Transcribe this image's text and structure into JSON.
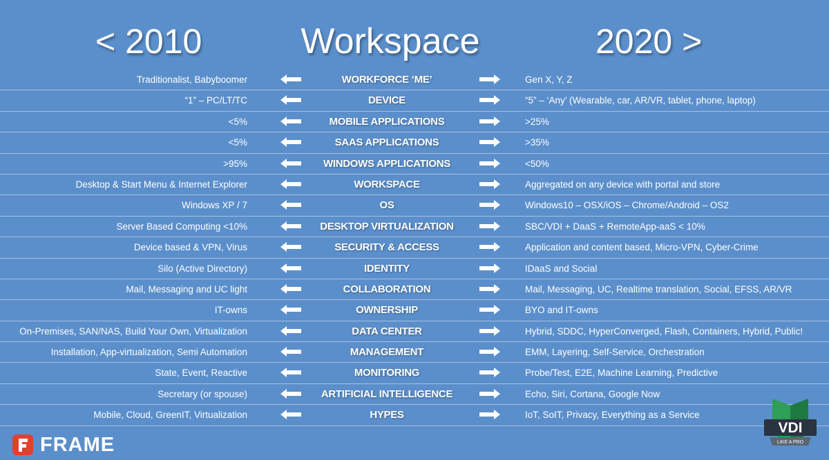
{
  "header": {
    "left_title": "< 2010",
    "center_title": "Workspace",
    "right_title": "2020 >"
  },
  "rows": [
    {
      "left": "Traditionalist, Babyboomer",
      "topic": "WORKFORCE ‘ME’",
      "right": "Gen X, Y, Z"
    },
    {
      "left": "“1” –  PC/LT/TC",
      "topic": "DEVICE",
      "right": "“5” – ‘Any’ (Wearable, car, AR/VR, tablet, phone, laptop)"
    },
    {
      "left": "<5%",
      "topic": "MOBILE APPLICATIONS",
      "right": ">25%"
    },
    {
      "left": "<5%",
      "topic": "SAAS APPLICATIONS",
      "right": ">35%"
    },
    {
      "left": ">95%",
      "topic": "WINDOWS APPLICATIONS",
      "right": "<50%"
    },
    {
      "left": "Desktop & Start Menu & Internet Explorer",
      "topic": "WORKSPACE",
      "right": "Aggregated on any device with portal and store"
    },
    {
      "left": "Windows XP / 7",
      "topic": "OS",
      "right": "Windows10 – OSX/iOS – Chrome/Android – OS2"
    },
    {
      "left": "Server Based Computing <10%",
      "topic": "DESKTOP VIRTUALIZATION",
      "right": "SBC/VDI + DaaS + RemoteApp-aaS  < 10%"
    },
    {
      "left": "Device based & VPN, Virus",
      "topic": "SECURITY & ACCESS",
      "right": "Application and content based, Micro-VPN, Cyber-Crime"
    },
    {
      "left": "Silo (Active Directory)",
      "topic": "IDENTITY",
      "right": "IDaaS and Social"
    },
    {
      "left": "Mail, Messaging and UC light",
      "topic": "COLLABORATION",
      "right": "Mail, Messaging, UC, Realtime translation, Social, EFSS, AR/VR"
    },
    {
      "left": "IT-owns",
      "topic": "OWNERSHIP",
      "right": "BYO and IT-owns"
    },
    {
      "left": "On-Premises, SAN/NAS, Build Your Own, Virtualization",
      "topic": "DATA CENTER",
      "right": "Hybrid, SDDC, HyperConverged, Flash, Containers, Hybrid, Public!"
    },
    {
      "left": "Installation, App-virtualization, Semi Automation",
      "topic": "MANAGEMENT",
      "right": "EMM, Layering, Self-Service, Orchestration"
    },
    {
      "left": "State, Event, Reactive",
      "topic": "MONITORING",
      "right": "Probe/Test, E2E, Machine Learning, Predictive"
    },
    {
      "left": "Secretary (or spouse)",
      "topic": "ARTIFICIAL INTELLIGENCE",
      "right": "Echo, Siri, Cortana, Google Now"
    },
    {
      "left": "Mobile, Cloud, GreenIT, Virtualization",
      "topic": "HYPES",
      "right": "IoT, SoIT, Privacy, Everything as a Service"
    }
  ],
  "logos": {
    "frame_text": "FRAME",
    "frame_icon": "frame-f-icon",
    "vdi_text": "VDI",
    "vdi_sub": "LIKE A PRO",
    "vdi_icon": "vdi-shield-icon"
  },
  "colors": {
    "background": "#5b8fcb",
    "frame_red": "#e0402e",
    "vdi_green": "#2f9e57",
    "vdi_dark": "#2a3340"
  }
}
